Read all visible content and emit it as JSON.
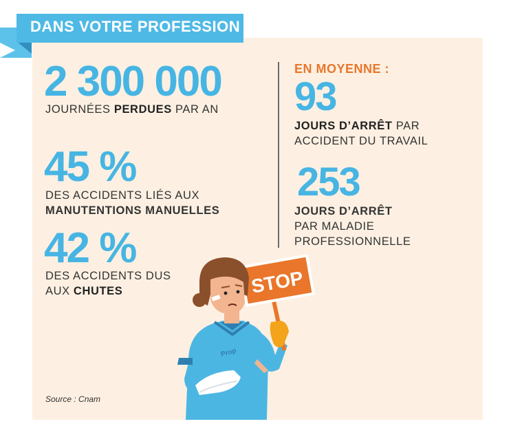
{
  "header": {
    "title": "DANS VOTRE PROFESSION :"
  },
  "left": {
    "stat1": {
      "value": "2 300 000",
      "line_pre": "JOURNÉES ",
      "line_bold": "PERDUES",
      "line_post": " PAR AN"
    },
    "stat2": {
      "value": "45 %",
      "line1": "DES ACCIDENTS LIÉS AUX",
      "line2_bold": "MANUTENTIONS MANUELLES"
    },
    "stat3": {
      "value": "42 %",
      "line1": "DES ACCIDENTS DUS",
      "line2_pre": "AUX ",
      "line2_bold": "CHUTES"
    }
  },
  "right": {
    "heading": "EN MOYENNE :",
    "stat1": {
      "value": "93",
      "line1_bold": "JOURS D’ARRÊT",
      "line1_post": " PAR",
      "line2": "ACCIDENT DU TRAVAIL"
    },
    "stat2": {
      "value": "253",
      "line1_bold": "JOURS D’ARRÊT",
      "line2": "PAR MALADIE",
      "line3": "PROFESSIONNELLE"
    }
  },
  "illustration": {
    "sign_text": "STOP",
    "pocket_text": "Prop"
  },
  "source": "Source : Cnam",
  "colors": {
    "accent_blue": "#47b5e3",
    "accent_orange": "#e9762a",
    "panel_bg": "#fdf0e2"
  }
}
